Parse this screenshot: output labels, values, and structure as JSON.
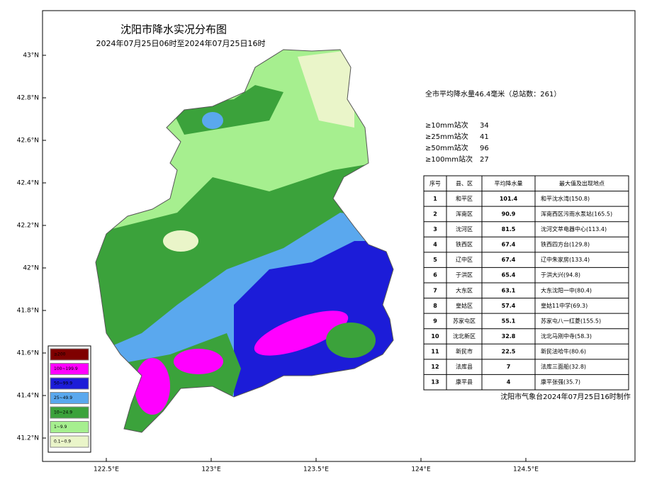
{
  "header": {
    "title": "沈阳市降水实况分布图",
    "subtitle": "2024年07月25日06时至2024年07月25日16时"
  },
  "summary": "全市平均降水量46.4毫米（总站数：261）",
  "thresholds": [
    {
      "label": "≥10mm站次",
      "count": "34"
    },
    {
      "label": "≥25mm站次",
      "count": "41"
    },
    {
      "label": "≥50mm站次",
      "count": "96"
    },
    {
      "label": "≥100mm站次",
      "count": "27"
    }
  ],
  "table": {
    "headers": [
      "序号",
      "县、区",
      "平均降水量",
      "最大值及出现地点"
    ],
    "rows": [
      [
        "1",
        "和平区",
        "101.4",
        "和平沈水湾(150.8)"
      ],
      [
        "2",
        "浑南区",
        "90.9",
        "浑南西区污雨水泵站(165.5)"
      ],
      [
        "3",
        "沈河区",
        "81.5",
        "沈河文萃电器中心(113.4)"
      ],
      [
        "4",
        "铁西区",
        "67.4",
        "铁西四方台(129.8)"
      ],
      [
        "5",
        "辽中区",
        "67.4",
        "辽中朱家房(133.4)"
      ],
      [
        "6",
        "于洪区",
        "65.4",
        "于洪大兴(94.8)"
      ],
      [
        "7",
        "大东区",
        "63.1",
        "大东沈阳一中(80.4)"
      ],
      [
        "8",
        "皇姑区",
        "57.4",
        "皇姑11中学(69.3)"
      ],
      [
        "9",
        "苏家屯区",
        "55.1",
        "苏家屯八一红菱(155.5)"
      ],
      [
        "10",
        "沈北新区",
        "32.8",
        "沈北马刚中寺(58.3)"
      ],
      [
        "11",
        "新民市",
        "22.5",
        "新民法哈牛(80.6)"
      ],
      [
        "12",
        "法库县",
        "7",
        "法库三面船(32.8)"
      ],
      [
        "13",
        "康平县",
        "4",
        "康平张强(35.7)"
      ]
    ]
  },
  "legend": [
    {
      "label": "≥200",
      "color": "#7f0000"
    },
    {
      "label": "100~199.9",
      "color": "#ff00ff"
    },
    {
      "label": "50~99.9",
      "color": "#1c1cd8"
    },
    {
      "label": "25~49.9",
      "color": "#5aa8ee"
    },
    {
      "label": "10~24.9",
      "color": "#3ba23b"
    },
    {
      "label": "1~9.9",
      "color": "#a6ef8f"
    },
    {
      "label": "0.1~0.9",
      "color": "#eaf5c9"
    }
  ],
  "lat_labels": [
    "43°N",
    "42.8°N",
    "42.6°N",
    "42.4°N",
    "42.2°N",
    "42°N",
    "41.8°N",
    "41.6°N",
    "41.4°N",
    "41.2°N"
  ],
  "lon_labels": [
    "122.5°E",
    "123°E",
    "123.5°E",
    "124°E",
    "124.5°E"
  ],
  "footer": "沈阳市气象台2024年07月25日16时制作"
}
